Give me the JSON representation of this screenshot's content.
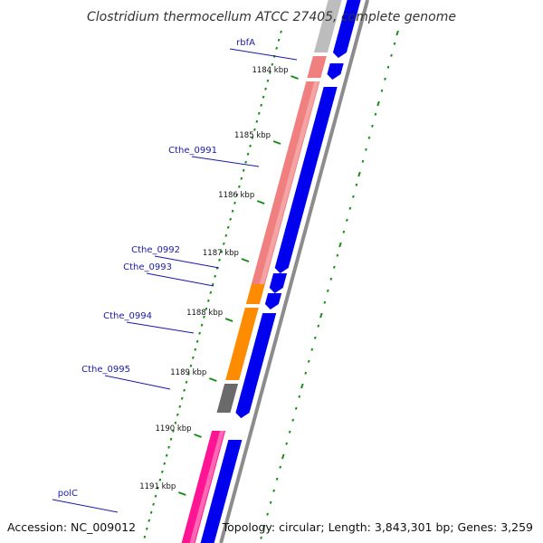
{
  "title": "Clostridium thermocellum ATCC 27405, complete genome",
  "accession_label": "Accession: NC_009012",
  "topology_label": "Topology: circular; Length: 3,843,301 bp; Genes: 3,259",
  "ticks": [
    "1184 kbp",
    "1185 kbp",
    "1186 kbp",
    "1187 kbp",
    "1188 kbp",
    "1189 kbp",
    "1190 kbp",
    "1191 kbp"
  ],
  "genes": [
    "rbfA",
    "Cthe_0991",
    "Cthe_0992",
    "Cthe_0993",
    "Cthe_0994",
    "Cthe_0995",
    "polC"
  ],
  "colors": {
    "backbone": "#8c8c8c",
    "cds_strand": "#0000ee",
    "gc_skew": "#1a8a1a",
    "label": "#1a1aa6",
    "feature_grey": "#bdbdbd",
    "feature_salmon": "#f08080",
    "feature_orange": "#ff8c00",
    "feature_darkgrey": "#6a6a6a",
    "feature_pink": "#ff1493"
  }
}
